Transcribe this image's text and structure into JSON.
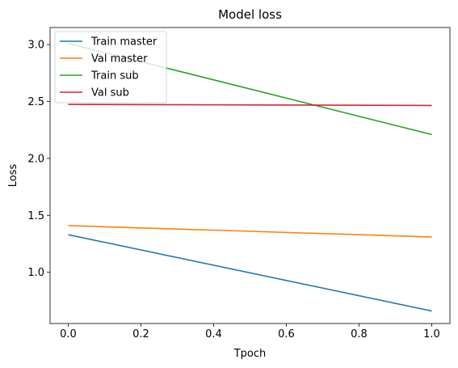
{
  "chart_data": {
    "type": "line",
    "title": "Model loss",
    "xlabel": "Tpoch",
    "ylabel": "Loss",
    "xlim": [
      -0.05,
      1.05
    ],
    "ylim": [
      0.55,
      3.15
    ],
    "xticks": [
      0.0,
      0.2,
      0.4,
      0.6,
      0.8,
      1.0
    ],
    "xtick_labels": [
      "0.0",
      "0.2",
      "0.4",
      "0.6",
      "0.8",
      "1.0"
    ],
    "yticks": [
      1.0,
      1.5,
      2.0,
      2.5,
      3.0
    ],
    "ytick_labels": [
      "1.0",
      "1.5",
      "2.0",
      "2.5",
      "3.0"
    ],
    "grid": false,
    "legend_position": "upper-left",
    "x": [
      0,
      1
    ],
    "series": [
      {
        "name": "Train master",
        "color": "#1f77b4",
        "values": [
          1.33,
          0.66
        ]
      },
      {
        "name": "Val master",
        "color": "#ff7f0e",
        "values": [
          1.41,
          1.31
        ]
      },
      {
        "name": "Train sub",
        "color": "#2ca02c",
        "values": [
          3.01,
          2.21
        ]
      },
      {
        "name": "Val sub",
        "color": "#d62728",
        "values": [
          2.475,
          2.465
        ]
      }
    ]
  }
}
